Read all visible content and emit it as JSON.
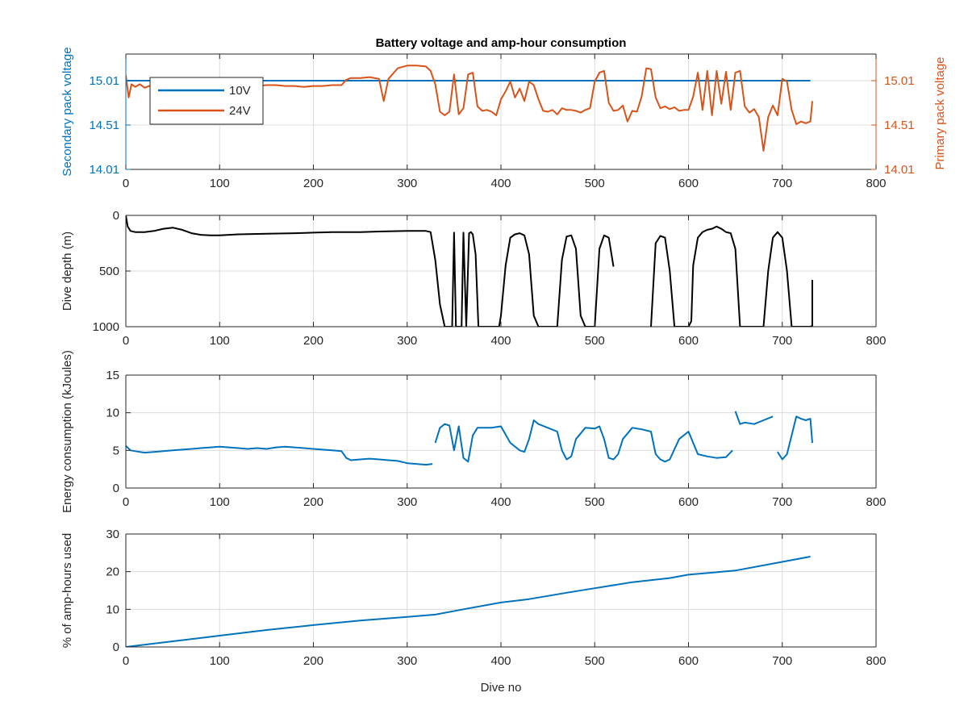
{
  "figure": {
    "title": "Battery voltage and amp-hour consumption",
    "colors": {
      "blue": "#0072bd",
      "orange": "#d95319",
      "black": "#000000",
      "grid": "#dcdcdc",
      "axis": "#262626"
    }
  },
  "chart_data": [
    {
      "type": "line",
      "title": "Battery voltage and amp-hour consumption",
      "xlabel": "",
      "ylabel_left": "Secondary pack voltage",
      "ylabel_right": "Primary pack voltage",
      "xlim": [
        0,
        800
      ],
      "ylim": [
        14.01,
        15.31
      ],
      "xticks": [
        0,
        100,
        200,
        300,
        400,
        500,
        600,
        700,
        800
      ],
      "yticks": [
        14.01,
        14.51,
        15.01
      ],
      "ytick_labels": [
        "14.01",
        "14.51",
        "15.01"
      ],
      "grid": true,
      "legend": {
        "placement": "top-left",
        "entries": [
          "10V",
          "24V"
        ]
      },
      "series": [
        {
          "name": "10V",
          "axis": "left",
          "color": "#0072bd",
          "x": [
            0,
            730
          ],
          "y": [
            15.01,
            15.01
          ]
        },
        {
          "name": "24V",
          "axis": "right",
          "color": "#d95319",
          "x": [
            0,
            3,
            6,
            10,
            15,
            20,
            25,
            30,
            40,
            50,
            60,
            70,
            80,
            90,
            100,
            110,
            120,
            130,
            140,
            150,
            160,
            170,
            180,
            190,
            200,
            210,
            220,
            230,
            235,
            240,
            250,
            260,
            270,
            275,
            280,
            290,
            300,
            310,
            320,
            325,
            330,
            335,
            340,
            345,
            350,
            355,
            360,
            365,
            370,
            375,
            380,
            385,
            390,
            395,
            400,
            405,
            410,
            415,
            420,
            425,
            430,
            435,
            440,
            445,
            450,
            455,
            460,
            465,
            470,
            475,
            480,
            485,
            490,
            495,
            500,
            505,
            510,
            515,
            520,
            525,
            530,
            535,
            540,
            545,
            550,
            555,
            560,
            565,
            570,
            575,
            580,
            585,
            590,
            595,
            600,
            605,
            610,
            615,
            620,
            625,
            630,
            635,
            640,
            645,
            650,
            655,
            660,
            665,
            670,
            675,
            680,
            685,
            690,
            695,
            700,
            705,
            710,
            715,
            720,
            725,
            730,
            732
          ],
          "y": [
            15.07,
            14.82,
            14.97,
            14.94,
            14.97,
            14.93,
            14.95,
            14.96,
            14.95,
            14.95,
            14.96,
            14.95,
            14.97,
            14.96,
            14.96,
            14.95,
            14.96,
            14.95,
            14.95,
            14.96,
            14.96,
            14.95,
            14.95,
            14.94,
            14.95,
            14.95,
            14.96,
            14.96,
            15.02,
            15.04,
            15.04,
            15.05,
            15.03,
            14.78,
            15.03,
            15.15,
            15.18,
            15.18,
            15.17,
            15.12,
            14.97,
            14.66,
            14.62,
            14.66,
            15.08,
            14.63,
            14.7,
            15.08,
            15.1,
            14.72,
            14.67,
            14.68,
            14.66,
            14.62,
            14.8,
            14.89,
            15.0,
            14.82,
            14.92,
            14.78,
            15.0,
            14.96,
            14.8,
            14.67,
            14.66,
            14.68,
            14.63,
            14.7,
            14.68,
            14.68,
            14.67,
            14.65,
            14.68,
            14.7,
            15.0,
            15.1,
            15.12,
            14.76,
            14.67,
            14.68,
            14.73,
            14.55,
            14.67,
            14.66,
            14.83,
            15.15,
            15.14,
            14.82,
            14.7,
            14.72,
            14.69,
            14.71,
            14.67,
            14.68,
            14.68,
            14.83,
            15.1,
            14.68,
            15.12,
            14.62,
            15.12,
            14.75,
            15.11,
            14.68,
            15.1,
            15.12,
            14.72,
            14.65,
            14.69,
            14.6,
            14.22,
            14.6,
            14.73,
            14.62,
            15.03,
            15.0,
            14.68,
            14.52,
            14.55,
            14.53,
            14.55,
            14.78
          ]
        }
      ]
    },
    {
      "type": "line",
      "xlabel": "",
      "ylabel": "Dive depth (m)",
      "xlim": [
        0,
        800
      ],
      "ylim": [
        0,
        1000
      ],
      "y_reversed": true,
      "xticks": [
        0,
        100,
        200,
        300,
        400,
        500,
        600,
        700,
        800
      ],
      "yticks": [
        0,
        500,
        1000
      ],
      "grid": true,
      "series": [
        {
          "color": "#000000",
          "segments": [
            {
              "x": [
                0,
                2,
                5,
                10,
                20,
                30,
                40,
                50,
                60,
                70,
                80,
                90,
                100,
                120,
                150,
                180,
                200,
                220,
                250,
                270,
                300,
                320,
                325,
                330,
                335,
                340,
                345,
                348,
                350,
                352,
                355,
                358,
                360,
                363,
                366,
                368,
                370,
                373,
                376,
                380,
                390,
                398,
                400,
                405,
                410,
                415,
                420,
                425,
                430,
                435,
                440,
                450,
                460,
                465,
                470,
                475,
                480,
                485,
                490,
                500,
                505,
                510,
                515,
                520
              ],
              "y": [
                0,
                100,
                140,
                150,
                150,
                140,
                120,
                110,
                130,
                160,
                175,
                180,
                180,
                170,
                165,
                160,
                155,
                150,
                150,
                145,
                140,
                140,
                150,
                400,
                800,
                1000,
                1000,
                1000,
                155,
                1000,
                1000,
                1000,
                155,
                1000,
                160,
                150,
                170,
                350,
                1000,
                1000,
                1000,
                1000,
                900,
                450,
                200,
                170,
                160,
                180,
                350,
                900,
                1000,
                1000,
                1000,
                400,
                190,
                180,
                300,
                900,
                1000,
                1000,
                300,
                180,
                200,
                460
              ]
            },
            {
              "x": [
                560,
                565,
                570,
                575,
                580,
                585,
                590,
                595,
                600,
                603,
                605,
                610,
                615,
                620,
                625,
                630,
                635,
                640,
                645,
                650,
                655,
                660,
                670,
                680,
                685,
                690,
                695,
                700,
                705,
                710,
                715,
                720,
                725,
                730,
                732,
                732
              ],
              "y": [
                1000,
                250,
                185,
                200,
                500,
                1000,
                1000,
                1000,
                1000,
                950,
                450,
                200,
                150,
                130,
                120,
                100,
                120,
                150,
                160,
                300,
                1000,
                1000,
                1000,
                1000,
                500,
                200,
                150,
                200,
                500,
                1000,
                1000,
                1000,
                1000,
                1000,
                990,
                580
              ]
            }
          ]
        }
      ]
    },
    {
      "type": "line",
      "xlabel": "",
      "ylabel": "Energy consumption (kJoules)",
      "xlim": [
        0,
        800
      ],
      "ylim": [
        0,
        15
      ],
      "xticks": [
        0,
        100,
        200,
        300,
        400,
        500,
        600,
        700,
        800
      ],
      "yticks": [
        0,
        5,
        10,
        15
      ],
      "grid": true,
      "series": [
        {
          "color": "#0072bd",
          "segments": [
            {
              "x": [
                0,
                5,
                10,
                20,
                30,
                40,
                50,
                60,
                70,
                80,
                90,
                100,
                110,
                120,
                130,
                140,
                150,
                160,
                170,
                180,
                190,
                200,
                210,
                220,
                230,
                235,
                240,
                250,
                260,
                270,
                280,
                290,
                300,
                310,
                320,
                327
              ],
              "y": [
                5.6,
                5.0,
                4.9,
                4.7,
                4.8,
                4.9,
                5.0,
                5.1,
                5.2,
                5.3,
                5.4,
                5.5,
                5.4,
                5.3,
                5.2,
                5.3,
                5.2,
                5.4,
                5.5,
                5.4,
                5.3,
                5.2,
                5.1,
                5.0,
                4.9,
                4.0,
                3.7,
                3.8,
                3.9,
                3.8,
                3.7,
                3.6,
                3.3,
                3.2,
                3.1,
                3.2
              ]
            },
            {
              "x": [
                330,
                335,
                340,
                345,
                350,
                355,
                360,
                365,
                370,
                375,
                380,
                390,
                400,
                410,
                420,
                425,
                430,
                435,
                440,
                450,
                460,
                465,
                470,
                475,
                480,
                490,
                500,
                505,
                510,
                515,
                520,
                525,
                530,
                540,
                550,
                560,
                565,
                570,
                575,
                580,
                590,
                600,
                610,
                620,
                630,
                640,
                647
              ],
              "y": [
                6.0,
                8.0,
                8.5,
                8.3,
                5.0,
                8.2,
                4.0,
                3.5,
                7.0,
                8.0,
                8.0,
                8.0,
                8.2,
                6.0,
                5.0,
                4.8,
                6.5,
                9.0,
                8.5,
                8.0,
                7.5,
                5.0,
                3.8,
                4.2,
                6.5,
                8.0,
                7.9,
                8.2,
                6.5,
                4.0,
                3.8,
                4.5,
                6.5,
                8.0,
                7.8,
                7.5,
                4.5,
                3.8,
                3.5,
                3.8,
                6.5,
                7.5,
                4.5,
                4.2,
                4.0,
                4.1,
                5.0
              ]
            },
            {
              "x": [
                650,
                655,
                660,
                670,
                680,
                690
              ],
              "y": [
                10.2,
                8.5,
                8.7,
                8.5,
                9.0,
                9.5
              ]
            },
            {
              "x": [
                695,
                700,
                705,
                710,
                715,
                720,
                725,
                730,
                732
              ],
              "y": [
                4.8,
                3.8,
                4.5,
                7.0,
                9.5,
                9.2,
                9.0,
                9.2,
                6.0
              ]
            }
          ]
        }
      ]
    },
    {
      "type": "line",
      "xlabel": "Dive no",
      "ylabel": "% of amp-hours used",
      "xlim": [
        0,
        800
      ],
      "ylim": [
        0,
        30
      ],
      "xticks": [
        0,
        100,
        200,
        300,
        400,
        500,
        600,
        700,
        800
      ],
      "yticks": [
        0,
        10,
        20,
        30
      ],
      "grid": true,
      "series": [
        {
          "color": "#0072bd",
          "x": [
            0,
            50,
            100,
            150,
            200,
            250,
            300,
            330,
            360,
            400,
            430,
            470,
            500,
            540,
            580,
            600,
            650,
            700,
            730
          ],
          "y": [
            0,
            1.5,
            3.0,
            4.5,
            5.8,
            7.0,
            8.0,
            8.6,
            10.0,
            11.8,
            12.7,
            14.4,
            15.6,
            17.2,
            18.3,
            19.2,
            20.3,
            22.6,
            24.0
          ]
        }
      ]
    }
  ]
}
